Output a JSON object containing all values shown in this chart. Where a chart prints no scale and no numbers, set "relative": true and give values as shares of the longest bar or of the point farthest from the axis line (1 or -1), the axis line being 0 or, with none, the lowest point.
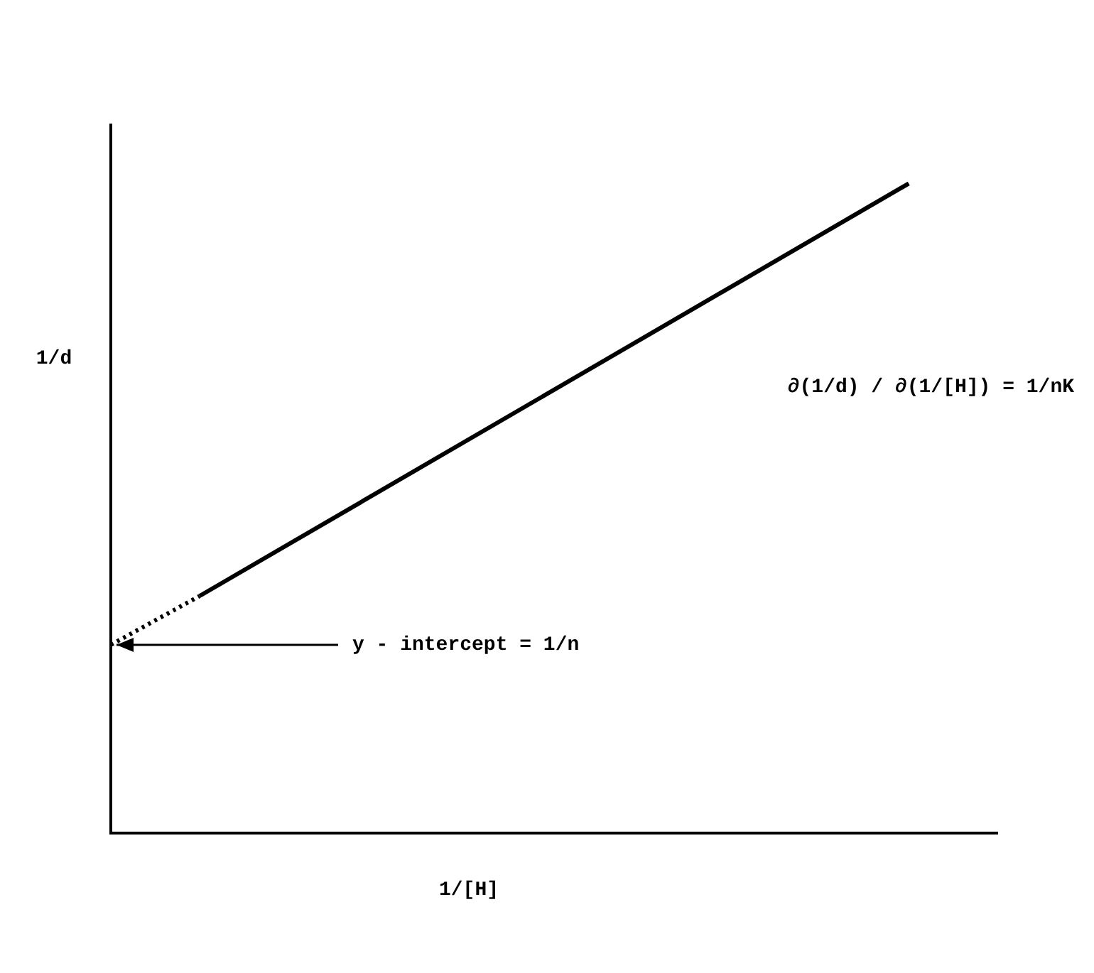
{
  "chart_data": {
    "type": "line",
    "relative": true,
    "xlabel": "1/[H]",
    "ylabel": "1/d",
    "legend": false,
    "grid": false,
    "marker": "none",
    "categories": [
      null,
      null,
      null,
      null,
      null,
      null,
      null,
      null,
      null,
      null,
      null
    ],
    "series": [
      {
        "color": "#000000",
        "values": [
          0.29,
          0.365,
          null,
          null,
          null,
          null,
          null,
          null,
          null,
          null,
          null
        ],
        "line_style": "dotted"
      },
      {
        "color": "#000000",
        "values": [
          null,
          0.365,
          null,
          null,
          null,
          null,
          null,
          null,
          null,
          1,
          null
        ],
        "line_style": "solid"
      }
    ],
    "annotations": [
      "∂(1/d) / ∂(1/[H]) = 1/nK",
      "y - intercept = 1/n"
    ]
  }
}
